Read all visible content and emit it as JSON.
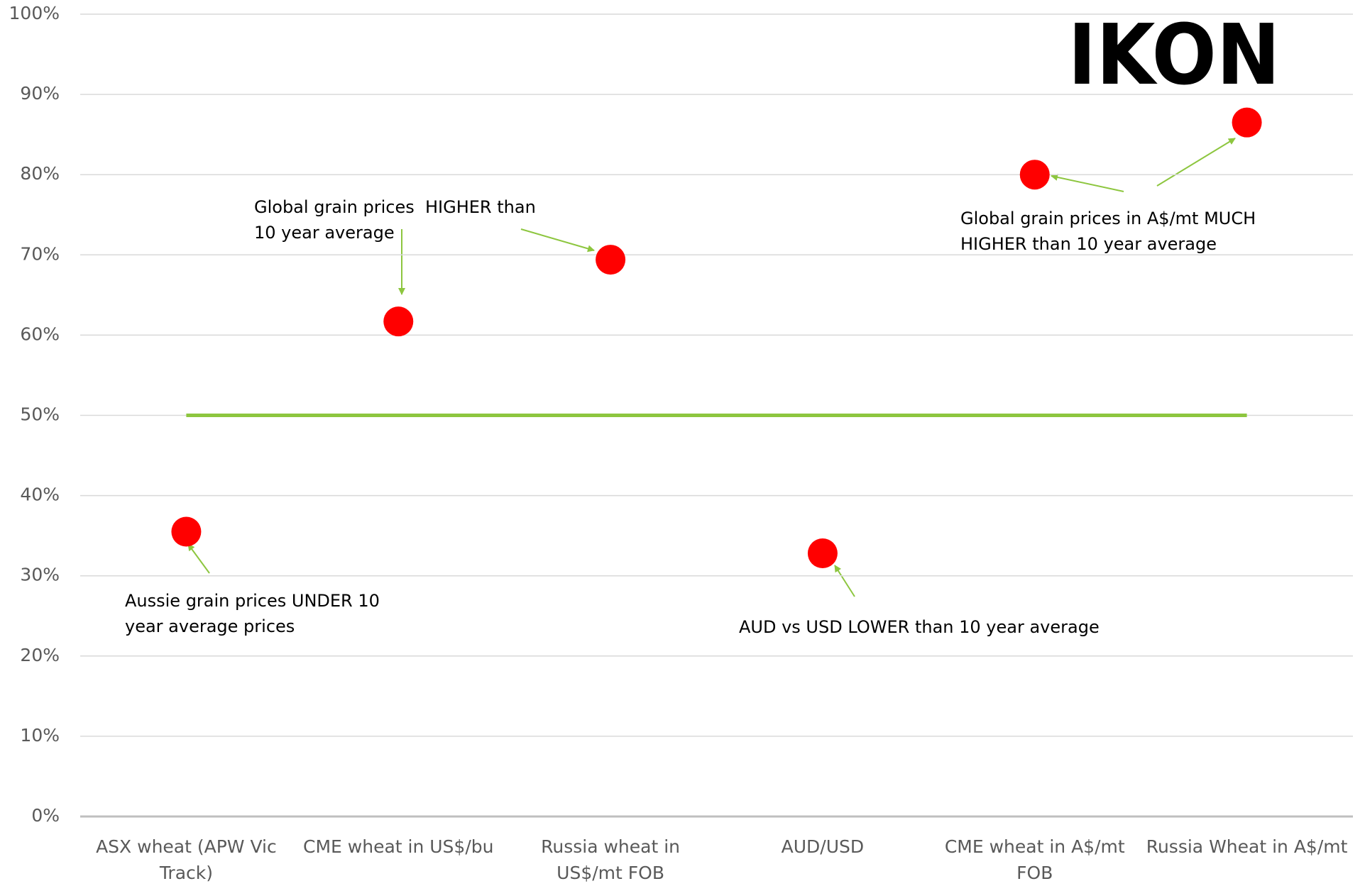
{
  "chart_data": {
    "type": "scatter",
    "logo": "IKON",
    "categories": [
      "ASX wheat (APW Vic Track)",
      "CME wheat in US$/bu",
      "Russia wheat in US$/mt FOB",
      "AUD/USD",
      "CME wheat in A$/mt FOB",
      "Russia Wheat in A$/mt"
    ],
    "series": [
      {
        "color": "#ff0000",
        "values": [
          35.5,
          61.7,
          69.4,
          32.8,
          80,
          86.5
        ]
      },
      {
        "color": "#8dc63f",
        "values": [
          50,
          50,
          50,
          50,
          50,
          50
        ]
      }
    ],
    "ylim": [
      0,
      100
    ],
    "yticks": [
      {
        "value": 0,
        "label": "0%"
      },
      {
        "value": 10,
        "label": "10%"
      },
      {
        "value": 20,
        "label": "20%"
      },
      {
        "value": 30,
        "label": "30%"
      },
      {
        "value": 40,
        "label": "40%"
      },
      {
        "value": 50,
        "label": "50%"
      },
      {
        "value": 60,
        "label": "60%"
      },
      {
        "value": 70,
        "label": "70%"
      },
      {
        "value": 80,
        "label": "80%"
      },
      {
        "value": 90,
        "label": "90%"
      },
      {
        "value": 100,
        "label": "100%"
      }
    ],
    "grid": true,
    "annotations": [
      "Aussie grain prices UNDER 10 year average prices",
      "Global grain prices  HIGHER than 10 year average",
      "AUD vs USD LOWER than 10 year average",
      "Global grain prices in A$/mt MUCH HIGHER than 10 year average"
    ]
  }
}
